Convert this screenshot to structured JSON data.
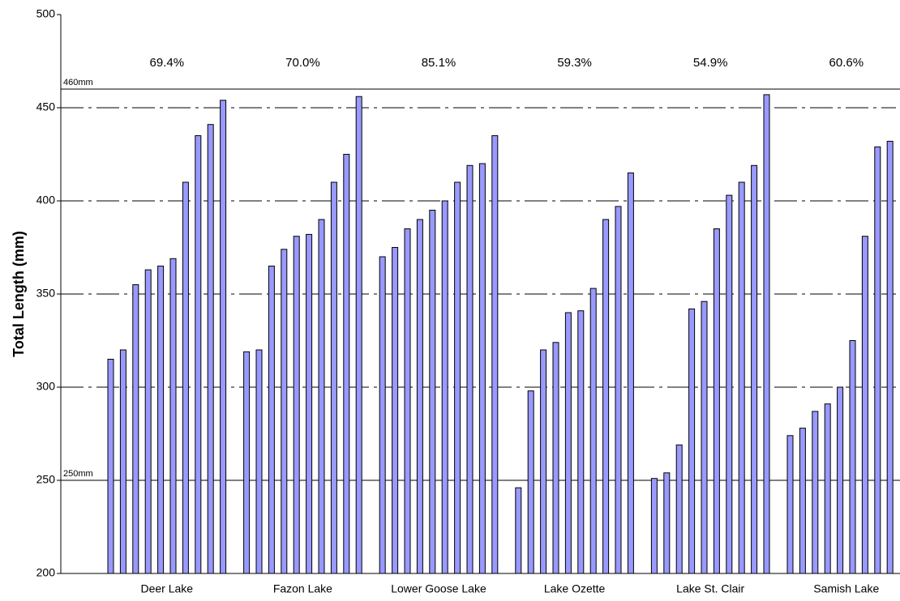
{
  "chart_data": {
    "type": "grouped-bar",
    "y_axis_label": "Total Length (mm)",
    "categories": [
      "Deer Lake",
      "Fazon Lake",
      "Lower Goose Lake",
      "Lake Ozette",
      "Lake St. Clair",
      "Samish Lake"
    ],
    "values": [
      [
        315,
        320,
        355,
        363,
        365,
        369,
        410,
        435,
        441,
        454
      ],
      [
        319,
        320,
        365,
        374,
        381,
        382,
        390,
        410,
        425,
        456
      ],
      [
        370,
        375,
        385,
        390,
        395,
        400,
        410,
        419,
        420,
        435
      ],
      [
        246,
        298,
        320,
        324,
        340,
        341,
        353,
        390,
        397,
        415
      ],
      [
        251,
        254,
        269,
        342,
        346,
        385,
        403,
        410,
        419,
        457
      ],
      [
        274,
        278,
        287,
        291,
        300,
        325,
        381,
        429,
        432
      ]
    ],
    "group_labels": [
      "69.4%",
      "70.0%",
      "85.1%",
      "59.3%",
      "54.9%",
      "60.6%"
    ],
    "reference_lines": [
      {
        "value": 460,
        "label": "460mm"
      },
      {
        "value": 250,
        "label": "250mm"
      }
    ],
    "color": "#9999ff",
    "ylim": [
      200,
      500
    ],
    "yticks": [
      200,
      250,
      300,
      350,
      400,
      450,
      500
    ],
    "grid": true
  }
}
